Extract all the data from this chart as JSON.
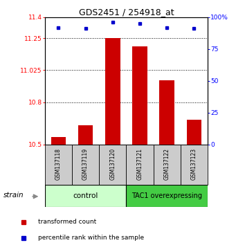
{
  "title": "GDS2451 / 254918_at",
  "samples": [
    "GSM137118",
    "GSM137119",
    "GSM137120",
    "GSM137121",
    "GSM137122",
    "GSM137123"
  ],
  "red_values": [
    10.555,
    10.635,
    11.252,
    11.195,
    10.955,
    10.675
  ],
  "blue_values": [
    92,
    91,
    96,
    95,
    92,
    91
  ],
  "ylim_left": [
    10.5,
    11.4
  ],
  "ylim_right": [
    0,
    100
  ],
  "yticks_left": [
    10.5,
    10.8,
    11.025,
    11.25,
    11.4
  ],
  "ytick_labels_left": [
    "10.5",
    "10.8",
    "11.025",
    "11.25",
    "11.4"
  ],
  "yticks_right": [
    0,
    25,
    50,
    75,
    100
  ],
  "ytick_labels_right": [
    "0",
    "25",
    "50",
    "75",
    "100%"
  ],
  "hlines": [
    10.8,
    11.025,
    11.25
  ],
  "ctrl_n": 3,
  "over_n": 3,
  "control_label": "control",
  "overexpressing_label": "TAC1 overexpressing",
  "strain_label": "strain",
  "legend_red": "transformed count",
  "legend_blue": "percentile rank within the sample",
  "bar_color": "#cc0000",
  "dot_color": "#0000cc",
  "control_bg": "#ccffcc",
  "overexp_bg": "#44cc44",
  "sample_box_bg": "#cccccc",
  "bar_width": 0.55,
  "bar_bottom": 10.5
}
